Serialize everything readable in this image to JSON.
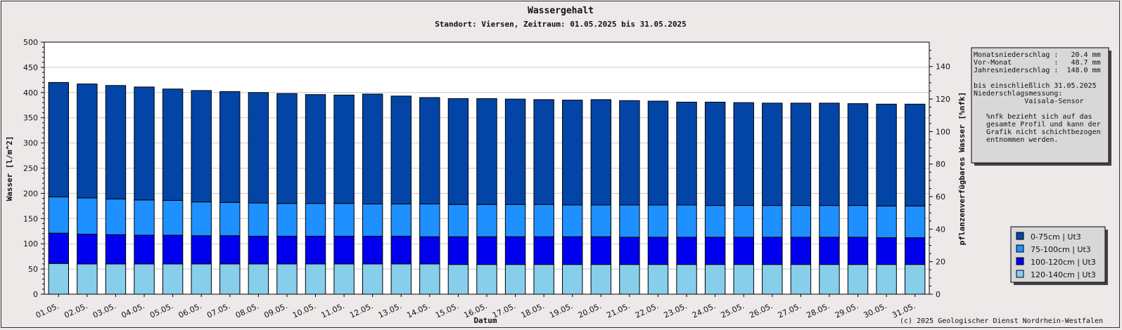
{
  "chart_data": {
    "type": "bar",
    "stacked": true,
    "title": "Wassergehalt",
    "subtitle": "Standort: Viersen, Zeitraum: 01.05.2025 bis 31.05.2025",
    "xlabel": "Datum",
    "ylabel": "Wasser [l/m^2]",
    "y2label": "pflanzenverfügbares Wasser [%nfk]",
    "ylim": [
      0,
      500
    ],
    "yticks": [
      "0",
      "50",
      "100",
      "150",
      "200",
      "250",
      "300",
      "350",
      "400",
      "450",
      "500"
    ],
    "y2lim": [
      0,
      155
    ],
    "y2ticks": [
      "0",
      "20",
      "40",
      "60",
      "80",
      "100",
      "120",
      "140"
    ],
    "grid": true,
    "categories": [
      "01.05.",
      "02.05.",
      "03.05.",
      "04.05.",
      "05.05.",
      "06.05.",
      "07.05.",
      "08.05.",
      "09.05.",
      "10.05.",
      "11.05.",
      "12.05.",
      "13.05.",
      "14.05.",
      "15.05.",
      "16.05.",
      "17.05.",
      "18.05.",
      "19.05.",
      "20.05.",
      "21.05.",
      "22.05.",
      "23.05.",
      "24.05.",
      "25.05.",
      "26.05.",
      "27.05.",
      "28.05.",
      "29.05.",
      "30.05.",
      "31.05."
    ],
    "series": [
      {
        "name": "120-140cm | Ut3",
        "color": "#87ceeb",
        "values": [
          61,
          60,
          60,
          60,
          60,
          60,
          60,
          60,
          60,
          60,
          60,
          60,
          60,
          60,
          59,
          59,
          59,
          59,
          59,
          59,
          59,
          59,
          59,
          59,
          59,
          59,
          59,
          59,
          59,
          59,
          59
        ]
      },
      {
        "name": "100-120cm | Ut3",
        "color": "#0000ee",
        "values": [
          60,
          59,
          58,
          57,
          57,
          56,
          56,
          55,
          55,
          55,
          55,
          55,
          55,
          54,
          55,
          55,
          55,
          55,
          55,
          55,
          54,
          54,
          54,
          54,
          54,
          54,
          54,
          54,
          54,
          53,
          53
        ]
      },
      {
        "name": "75-100cm | Ut3",
        "color": "#1e90ff",
        "values": [
          72,
          72,
          71,
          70,
          69,
          67,
          66,
          66,
          65,
          65,
          65,
          64,
          64,
          65,
          64,
          64,
          64,
          64,
          63,
          63,
          64,
          64,
          64,
          63,
          63,
          63,
          63,
          63,
          63,
          63,
          63
        ]
      },
      {
        "name": "0-75cm | Ut3",
        "color": "#0345a6",
        "values": [
          227,
          226,
          225,
          224,
          221,
          221,
          220,
          219,
          218,
          216,
          215,
          218,
          214,
          211,
          210,
          210,
          209,
          208,
          208,
          209,
          207,
          206,
          204,
          205,
          204,
          203,
          203,
          203,
          202,
          202,
          202
        ]
      }
    ],
    "legend_position": "bottom-right"
  },
  "info_box": {
    "lines": [
      "Monatsniederschlag :   20.4 mm",
      "Vor-Monat          :   48.7 mm",
      "Jahresniederschlag :  148.0 mm",
      "",
      "bis einschließlich 31.05.2025",
      "Niederschlagsmessung:",
      "            Vaisala-Sensor",
      "",
      "   %nfk bezieht sich auf das",
      "   gesamte Profil und kann der",
      "   Grafik nicht schichtbezogen",
      "   entnommen werden."
    ]
  },
  "copyright": "(c) 2025 Geologischer Dienst Nordrhein-Westfalen"
}
